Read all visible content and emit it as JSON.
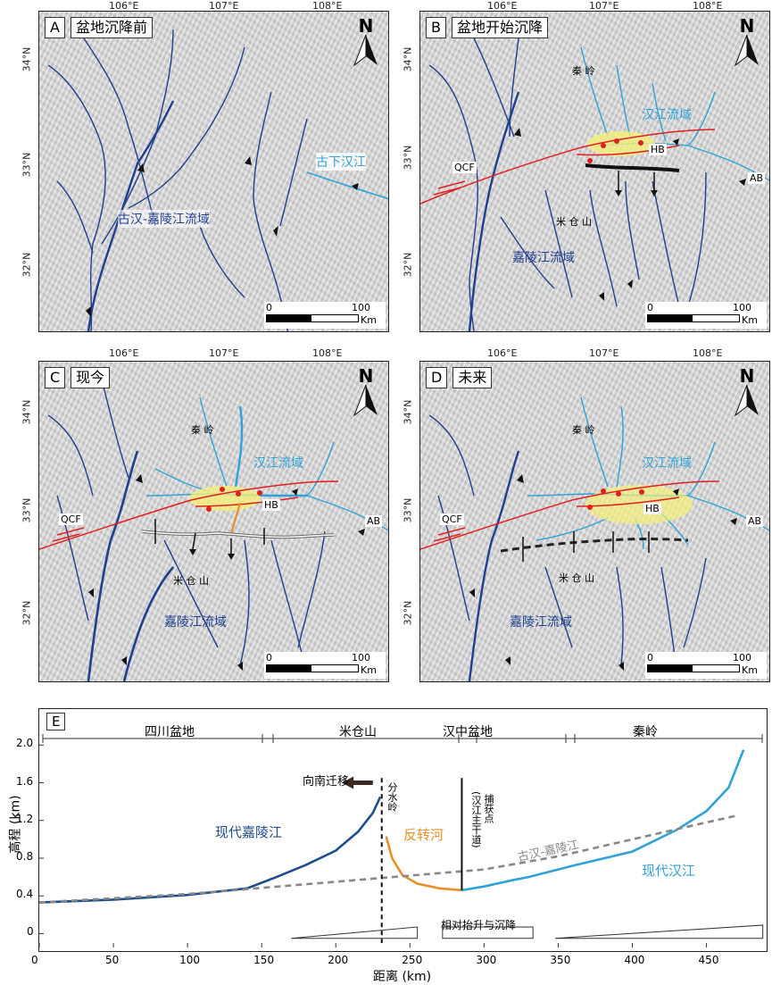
{
  "panels": [
    {
      "letter": "A",
      "title": "盆地沉降前",
      "labels": {
        "old_han_lower": "古下汉江",
        "old_basin": "古汉-嘉陵江流域"
      }
    },
    {
      "letter": "B",
      "title": "盆地开始沉降",
      "labels": {
        "qinling": "秦 岭",
        "hanjiang": "汉江流域",
        "hb": "HB",
        "qcf": "QCF",
        "micang": "米 仓 山",
        "jialing": "嘉陵江流域",
        "ab": "AB"
      }
    },
    {
      "letter": "C",
      "title": "现今",
      "labels": {
        "qinling": "秦 岭",
        "hanjiang": "汉江流域",
        "hb": "HB",
        "qcf": "QCF",
        "micang": "米 仓 山",
        "jialing": "嘉陵江流域",
        "ab": "AB"
      }
    },
    {
      "letter": "D",
      "title": "未来",
      "labels": {
        "qinling": "秦 岭",
        "hanjiang": "汉江流域",
        "hb": "HB",
        "qcf": "QCF",
        "micang": "米 仓 山",
        "jialing": "嘉陵江流域",
        "ab": "AB"
      }
    }
  ],
  "map_axes": {
    "lon": [
      "106°E",
      "107°E",
      "108°E"
    ],
    "lat": [
      "34°N",
      "33°N",
      "32°N"
    ]
  },
  "north_label": "N",
  "scale_bar": {
    "zero": "0",
    "hundred": "100",
    "unit": "Km"
  },
  "profile": {
    "letter": "E",
    "regions": [
      "四川盆地",
      "米仓山",
      "汉中盆地",
      "秦岭"
    ],
    "ylabel": "高程 (km)",
    "xlabel": "距离 (km)",
    "yticks": [
      "0",
      "0.4",
      "0.8",
      "1.2",
      "1.6",
      "2.0"
    ],
    "xticks": [
      "0",
      "50",
      "100",
      "150",
      "200",
      "250",
      "300",
      "350",
      "400",
      "450"
    ],
    "annotations": {
      "migrate": "向南迁移",
      "divide": "分水岭",
      "capture": "捕获点",
      "capture_sub": "(汉江主干道)",
      "modern_jialing": "现代嘉陵江",
      "reversed": "反转河",
      "old_basin": "古汉-嘉陵江",
      "modern_han": "现代汉江",
      "uplift": "相对抬升与沉降"
    },
    "colors": {
      "jialing": "#1d4e8c",
      "reversed": "#e8902a",
      "han": "#2fa3d8",
      "old": "#888888"
    }
  },
  "chart_data": {
    "type": "line",
    "xlabel": "距离 (km)",
    "ylabel": "高程 (km)",
    "xlim": [
      0,
      490
    ],
    "ylim": [
      -0.1,
      2.05
    ],
    "series": [
      {
        "name": "现代嘉陵江",
        "x": [
          0,
          50,
          100,
          140,
          160,
          180,
          200,
          215,
          225,
          230
        ],
        "y": [
          0.33,
          0.36,
          0.41,
          0.48,
          0.6,
          0.73,
          0.88,
          1.08,
          1.28,
          1.45
        ]
      },
      {
        "name": "反转河",
        "x": [
          234,
          238,
          245,
          255,
          270,
          285
        ],
        "y": [
          1.03,
          0.8,
          0.62,
          0.53,
          0.48,
          0.46
        ]
      },
      {
        "name": "现代汉江",
        "x": [
          285,
          300,
          320,
          330,
          360,
          400,
          430,
          450,
          465,
          475
        ],
        "y": [
          0.46,
          0.5,
          0.57,
          0.6,
          0.72,
          0.87,
          1.1,
          1.3,
          1.55,
          1.95
        ]
      },
      {
        "name": "古汉-嘉陵江",
        "x": [
          0,
          100,
          200,
          300,
          350,
          400,
          450,
          470
        ],
        "y": [
          0.33,
          0.42,
          0.55,
          0.68,
          0.82,
          1.0,
          1.18,
          1.25
        ]
      }
    ]
  }
}
